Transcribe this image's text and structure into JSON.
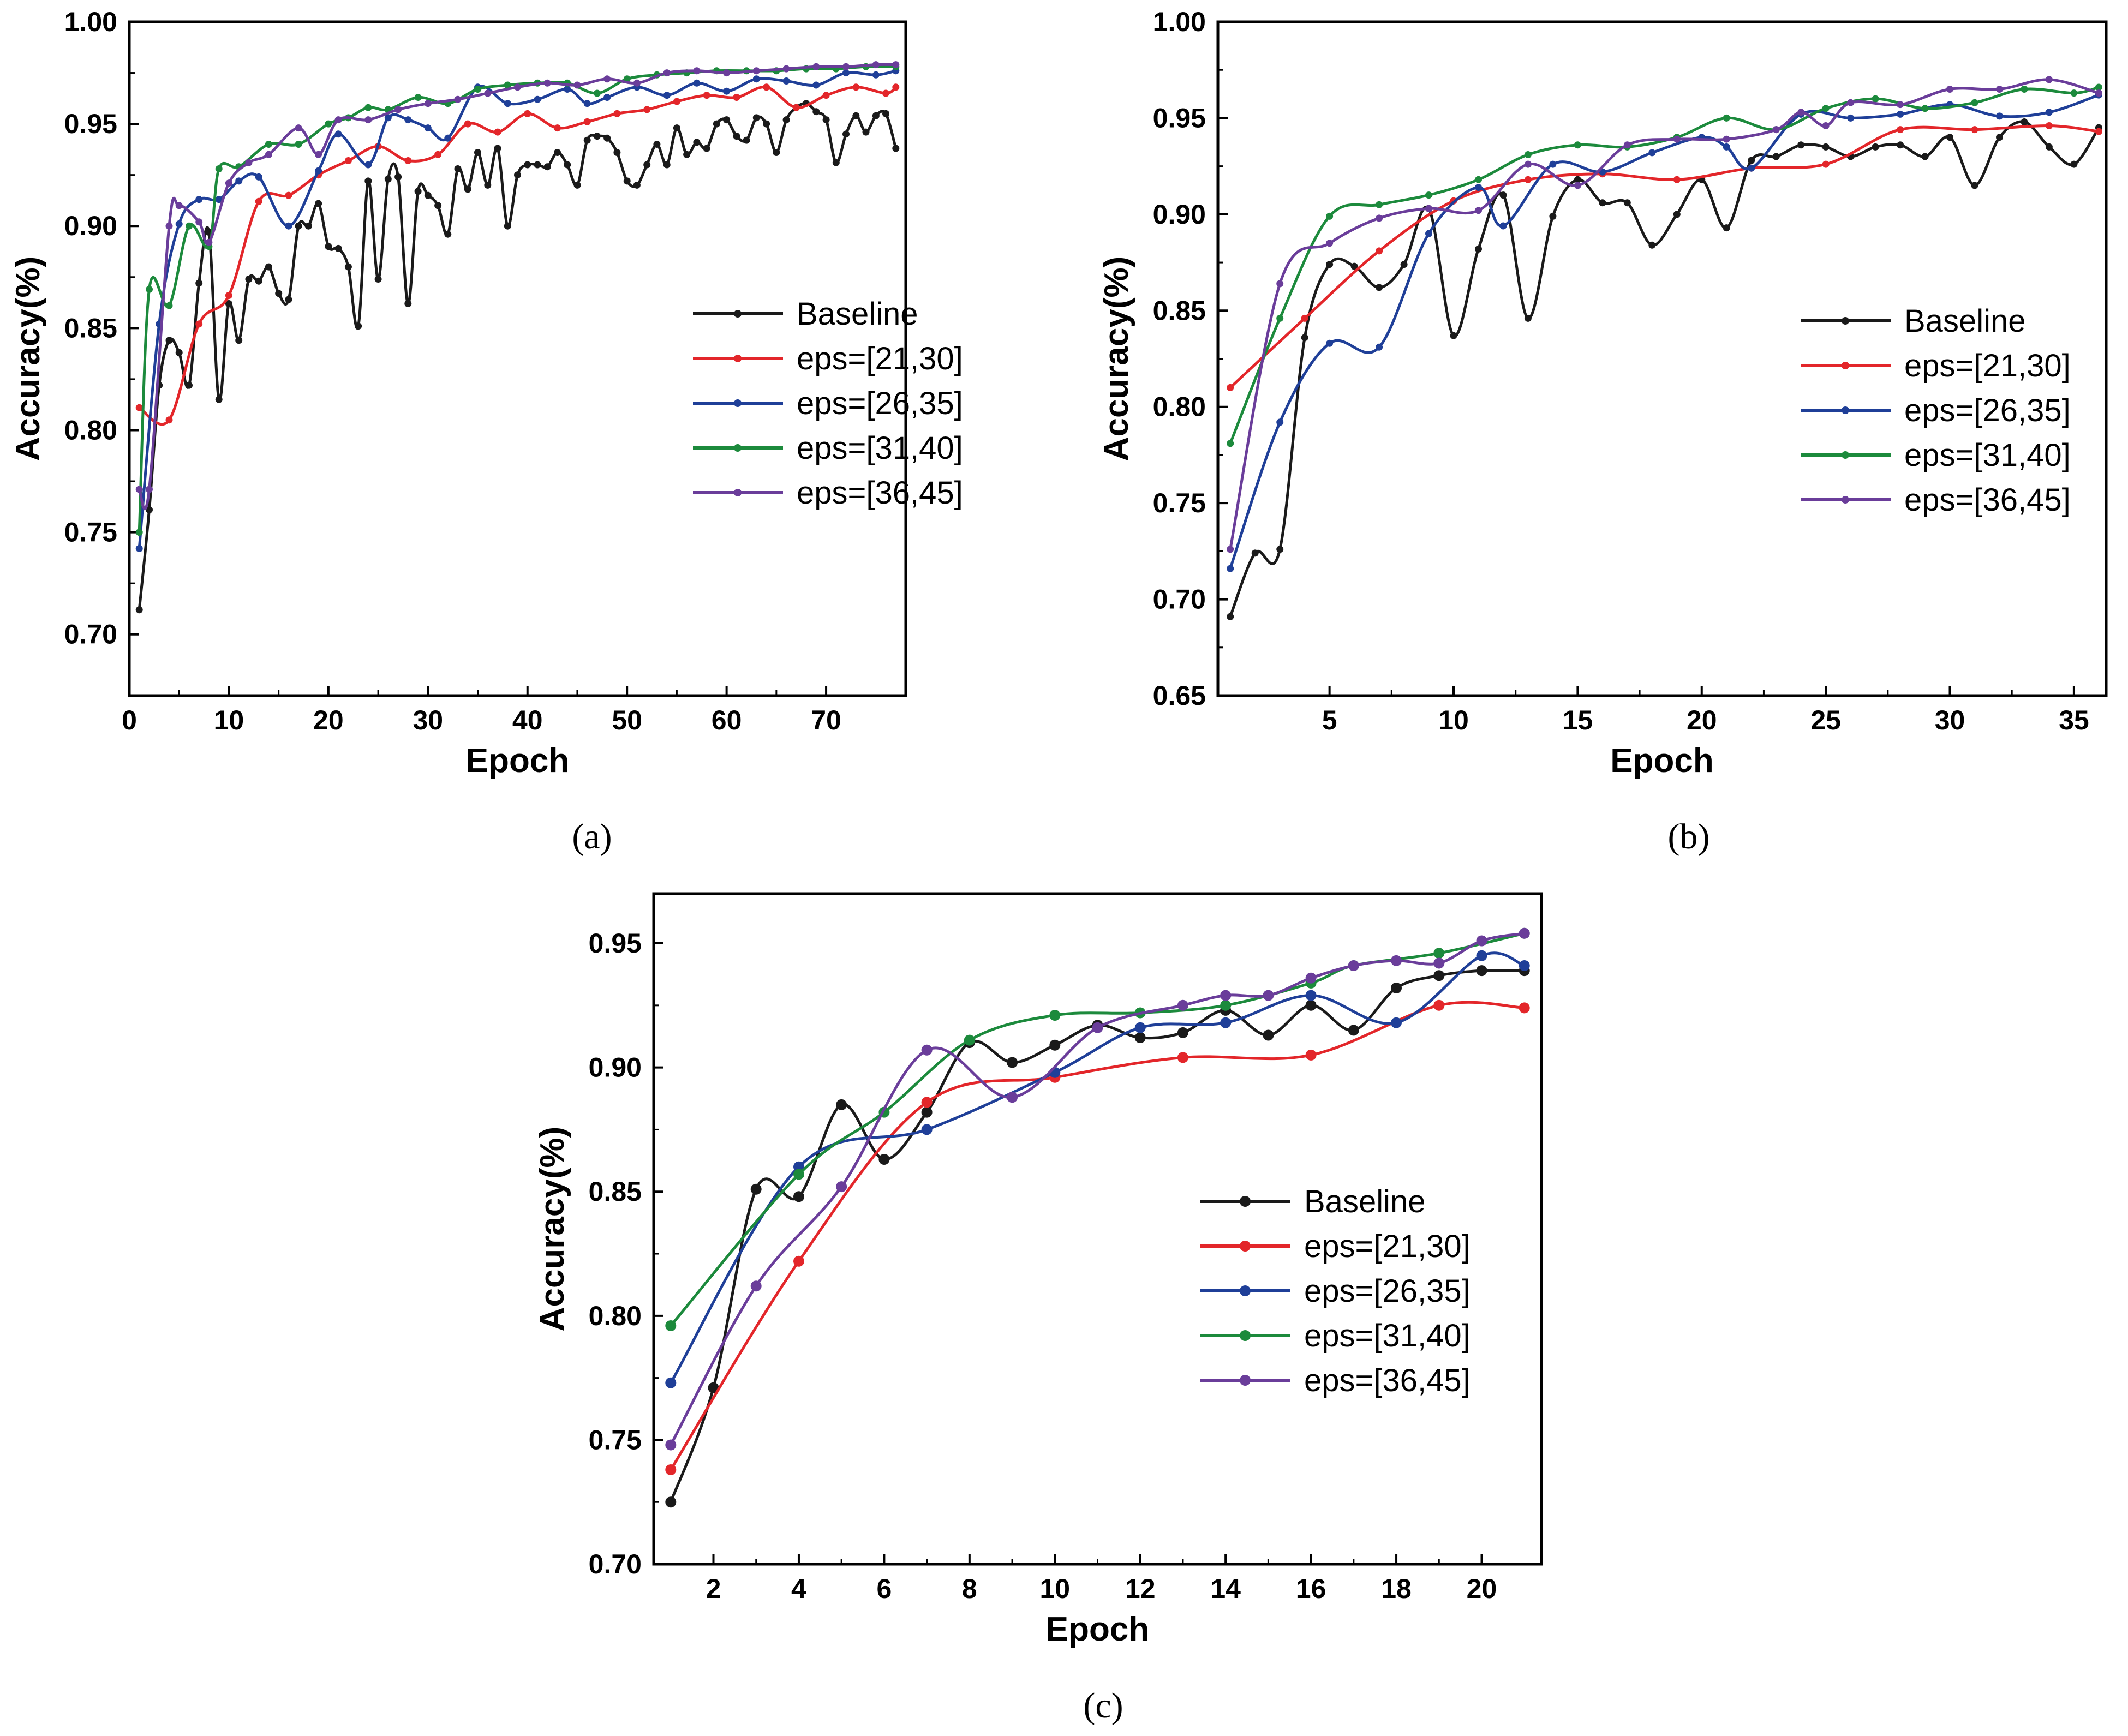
{
  "chart_data": [
    {
      "type": "line",
      "panel_label": "(a)",
      "xlabel": "Epoch",
      "ylabel": "Accuracy(%)",
      "xlim": [
        0,
        78
      ],
      "ylim": [
        0.67,
        1.0
      ],
      "xticks": [
        0,
        10,
        20,
        30,
        40,
        50,
        60,
        70
      ],
      "yticks": [
        0.7,
        0.75,
        0.8,
        0.85,
        0.9,
        0.95,
        1.0
      ],
      "ytick_labels": [
        "0.70",
        "0.75",
        "0.80",
        "0.85",
        "0.90",
        "0.95",
        "1.00"
      ],
      "legend_position": "center-right",
      "series": [
        {
          "name": "Baseline",
          "color": "#1a1a1a",
          "x": [
            1,
            2,
            3,
            4,
            5,
            6,
            7,
            8,
            9,
            10,
            11,
            12,
            13,
            14,
            15,
            16,
            17,
            18,
            19,
            20,
            21,
            22,
            23,
            24,
            25,
            26,
            27,
            28,
            29,
            30,
            31,
            32,
            33,
            34,
            35,
            36,
            37,
            38,
            39,
            40,
            41,
            42,
            43,
            44,
            45,
            46,
            47,
            48,
            49,
            50,
            51,
            52,
            53,
            54,
            55,
            56,
            57,
            58,
            59,
            60,
            61,
            62,
            63,
            64,
            65,
            66,
            67,
            68,
            69,
            70,
            71,
            72,
            73,
            74,
            75,
            76,
            77
          ],
          "values": [
            0.712,
            0.761,
            0.822,
            0.844,
            0.838,
            0.822,
            0.872,
            0.897,
            0.815,
            0.862,
            0.844,
            0.874,
            0.873,
            0.88,
            0.867,
            0.864,
            0.9,
            0.9,
            0.911,
            0.89,
            0.889,
            0.88,
            0.851,
            0.922,
            0.874,
            0.923,
            0.924,
            0.862,
            0.917,
            0.915,
            0.91,
            0.896,
            0.928,
            0.918,
            0.936,
            0.92,
            0.938,
            0.9,
            0.925,
            0.93,
            0.93,
            0.929,
            0.936,
            0.93,
            0.92,
            0.942,
            0.944,
            0.943,
            0.936,
            0.922,
            0.92,
            0.93,
            0.94,
            0.93,
            0.948,
            0.935,
            0.941,
            0.938,
            0.95,
            0.952,
            0.944,
            0.942,
            0.953,
            0.95,
            0.936,
            0.952,
            0.958,
            0.96,
            0.956,
            0.952,
            0.931,
            0.945,
            0.954,
            0.946,
            0.954,
            0.955,
            0.938
          ]
        },
        {
          "name": "eps=[21,30]",
          "color": "#e3262a",
          "x": [
            1,
            4,
            7,
            10,
            13,
            16,
            19,
            22,
            25,
            28,
            31,
            34,
            37,
            40,
            43,
            46,
            49,
            52,
            55,
            58,
            61,
            64,
            67,
            70,
            73,
            76,
            77
          ],
          "values": [
            0.811,
            0.805,
            0.852,
            0.866,
            0.912,
            0.915,
            0.925,
            0.932,
            0.939,
            0.932,
            0.935,
            0.95,
            0.946,
            0.955,
            0.948,
            0.951,
            0.955,
            0.957,
            0.961,
            0.964,
            0.963,
            0.968,
            0.958,
            0.964,
            0.968,
            0.965,
            0.968
          ]
        },
        {
          "name": "eps=[26,35]",
          "color": "#1f3f98",
          "x": [
            1,
            3,
            5,
            7,
            9,
            11,
            13,
            16,
            19,
            21,
            24,
            26,
            28,
            30,
            32,
            35,
            38,
            41,
            44,
            46,
            48,
            51,
            54,
            57,
            60,
            63,
            66,
            69,
            72,
            75,
            77
          ],
          "values": [
            0.742,
            0.852,
            0.901,
            0.913,
            0.913,
            0.922,
            0.924,
            0.9,
            0.927,
            0.945,
            0.93,
            0.953,
            0.952,
            0.948,
            0.943,
            0.968,
            0.96,
            0.962,
            0.967,
            0.96,
            0.963,
            0.968,
            0.964,
            0.97,
            0.966,
            0.972,
            0.971,
            0.969,
            0.975,
            0.974,
            0.976
          ]
        },
        {
          "name": "eps=[31,40]",
          "color": "#1c8a3c",
          "x": [
            1,
            2,
            4,
            6,
            8,
            9,
            11,
            14,
            17,
            20,
            22,
            24,
            26,
            29,
            32,
            35,
            38,
            41,
            44,
            47,
            50,
            53,
            56,
            59,
            62,
            65,
            68,
            71,
            74,
            77
          ],
          "values": [
            0.75,
            0.869,
            0.861,
            0.9,
            0.89,
            0.928,
            0.929,
            0.94,
            0.94,
            0.95,
            0.953,
            0.958,
            0.957,
            0.963,
            0.96,
            0.967,
            0.969,
            0.97,
            0.97,
            0.965,
            0.972,
            0.974,
            0.975,
            0.976,
            0.976,
            0.976,
            0.977,
            0.977,
            0.978,
            0.978
          ]
        },
        {
          "name": "eps=[36,45]",
          "color": "#6a3d9a",
          "x": [
            1,
            2,
            4,
            5,
            7,
            8,
            10,
            12,
            14,
            17,
            19,
            21,
            24,
            27,
            30,
            33,
            36,
            39,
            42,
            45,
            48,
            51,
            54,
            57,
            60,
            63,
            66,
            69,
            72,
            75,
            77
          ],
          "values": [
            0.771,
            0.771,
            0.9,
            0.91,
            0.902,
            0.892,
            0.921,
            0.931,
            0.935,
            0.948,
            0.935,
            0.952,
            0.952,
            0.957,
            0.96,
            0.962,
            0.965,
            0.968,
            0.97,
            0.969,
            0.972,
            0.97,
            0.975,
            0.976,
            0.975,
            0.976,
            0.977,
            0.978,
            0.978,
            0.979,
            0.979
          ]
        }
      ]
    },
    {
      "type": "line",
      "panel_label": "(b)",
      "xlabel": "Epoch",
      "ylabel": "Accuracy(%)",
      "xlim": [
        0.5,
        36.3
      ],
      "ylim": [
        0.65,
        1.0
      ],
      "xticks": [
        5,
        10,
        15,
        20,
        25,
        30,
        35
      ],
      "yticks": [
        0.65,
        0.7,
        0.75,
        0.8,
        0.85,
        0.9,
        0.95,
        1.0
      ],
      "ytick_labels": [
        "0.65",
        "0.70",
        "0.75",
        "0.80",
        "0.85",
        "0.90",
        "0.95",
        "1.00"
      ],
      "legend_position": "center-right",
      "series": [
        {
          "name": "Baseline",
          "color": "#1a1a1a",
          "x": [
            1,
            2,
            3,
            4,
            5,
            6,
            7,
            8,
            9,
            10,
            11,
            12,
            13,
            14,
            15,
            16,
            17,
            18,
            19,
            20,
            21,
            22,
            23,
            24,
            25,
            26,
            27,
            28,
            29,
            30,
            31,
            32,
            33,
            34,
            35,
            36
          ],
          "values": [
            0.691,
            0.724,
            0.726,
            0.836,
            0.874,
            0.873,
            0.862,
            0.874,
            0.903,
            0.837,
            0.882,
            0.91,
            0.846,
            0.899,
            0.918,
            0.906,
            0.906,
            0.884,
            0.9,
            0.918,
            0.893,
            0.928,
            0.93,
            0.936,
            0.935,
            0.93,
            0.935,
            0.936,
            0.93,
            0.94,
            0.915,
            0.94,
            0.948,
            0.935,
            0.926,
            0.945
          ]
        },
        {
          "name": "eps=[21,30]",
          "color": "#e3262a",
          "x": [
            1,
            4,
            7,
            10,
            13,
            16,
            19,
            22,
            25,
            28,
            31,
            34,
            36
          ],
          "values": [
            0.81,
            0.846,
            0.881,
            0.907,
            0.918,
            0.921,
            0.918,
            0.924,
            0.926,
            0.944,
            0.944,
            0.946,
            0.943
          ]
        },
        {
          "name": "eps=[26,35]",
          "color": "#1f3f98",
          "x": [
            1,
            3,
            5,
            7,
            9,
            11,
            12,
            14,
            16,
            18,
            20,
            21,
            22,
            24,
            26,
            28,
            30,
            32,
            34,
            36
          ],
          "values": [
            0.716,
            0.792,
            0.833,
            0.831,
            0.89,
            0.914,
            0.894,
            0.926,
            0.922,
            0.932,
            0.94,
            0.935,
            0.924,
            0.952,
            0.95,
            0.952,
            0.957,
            0.951,
            0.953,
            0.962
          ]
        },
        {
          "name": "eps=[31,40]",
          "color": "#1c8a3c",
          "x": [
            1,
            3,
            5,
            7,
            9,
            11,
            13,
            15,
            17,
            19,
            21,
            23,
            25,
            27,
            29,
            31,
            33,
            35,
            36
          ],
          "values": [
            0.781,
            0.846,
            0.899,
            0.905,
            0.91,
            0.918,
            0.931,
            0.936,
            0.935,
            0.94,
            0.95,
            0.944,
            0.955,
            0.96,
            0.955,
            0.958,
            0.965,
            0.963,
            0.966
          ]
        },
        {
          "name": "eps=[36,45]",
          "color": "#6a3d9a",
          "x": [
            1,
            3,
            5,
            7,
            9,
            11,
            13,
            15,
            17,
            19,
            21,
            23,
            24,
            25,
            26,
            28,
            30,
            32,
            34,
            36
          ],
          "values": [
            0.726,
            0.864,
            0.885,
            0.898,
            0.903,
            0.902,
            0.926,
            0.915,
            0.936,
            0.939,
            0.939,
            0.944,
            0.953,
            0.946,
            0.958,
            0.957,
            0.965,
            0.965,
            0.97,
            0.963
          ]
        }
      ]
    },
    {
      "type": "line",
      "panel_label": "(c)",
      "xlabel": "Epoch",
      "ylabel": "Accuracy(%)",
      "xlim": [
        0.6,
        21.4
      ],
      "ylim": [
        0.7,
        0.97
      ],
      "xticks": [
        2,
        4,
        6,
        8,
        10,
        12,
        14,
        16,
        18,
        20
      ],
      "yticks": [
        0.7,
        0.75,
        0.8,
        0.85,
        0.9,
        0.95
      ],
      "ytick_labels": [
        "0.70",
        "0.75",
        "0.80",
        "0.85",
        "0.90",
        "0.95"
      ],
      "legend_position": "center-right",
      "series": [
        {
          "name": "Baseline",
          "color": "#1a1a1a",
          "x": [
            1,
            2,
            3,
            4,
            5,
            6,
            7,
            8,
            9,
            10,
            11,
            12,
            13,
            14,
            15,
            16,
            17,
            18,
            19,
            20,
            21
          ],
          "values": [
            0.725,
            0.771,
            0.851,
            0.848,
            0.885,
            0.863,
            0.882,
            0.91,
            0.902,
            0.909,
            0.917,
            0.912,
            0.914,
            0.923,
            0.913,
            0.925,
            0.915,
            0.932,
            0.937,
            0.939,
            0.939
          ]
        },
        {
          "name": "eps=[21,30]",
          "color": "#e3262a",
          "x": [
            1,
            4,
            7,
            10,
            13,
            16,
            19,
            21
          ],
          "values": [
            0.738,
            0.822,
            0.886,
            0.896,
            0.904,
            0.905,
            0.925,
            0.924
          ]
        },
        {
          "name": "eps=[26,35]",
          "color": "#1f3f98",
          "x": [
            1,
            4,
            7,
            10,
            12,
            14,
            16,
            18,
            20,
            21
          ],
          "values": [
            0.773,
            0.86,
            0.875,
            0.898,
            0.916,
            0.918,
            0.929,
            0.918,
            0.945,
            0.941
          ]
        },
        {
          "name": "eps=[31,40]",
          "color": "#1c8a3c",
          "x": [
            1,
            4,
            6,
            8,
            10,
            12,
            14,
            16,
            17,
            19,
            21
          ],
          "values": [
            0.796,
            0.857,
            0.882,
            0.911,
            0.921,
            0.922,
            0.925,
            0.934,
            0.941,
            0.946,
            0.954
          ]
        },
        {
          "name": "eps=[36,45]",
          "color": "#6a3d9a",
          "x": [
            1,
            3,
            5,
            7,
            9,
            11,
            13,
            14,
            15,
            16,
            17,
            18,
            19,
            20,
            21
          ],
          "values": [
            0.748,
            0.812,
            0.852,
            0.907,
            0.888,
            0.916,
            0.925,
            0.929,
            0.929,
            0.936,
            0.941,
            0.943,
            0.942,
            0.951,
            0.954
          ]
        }
      ]
    }
  ]
}
